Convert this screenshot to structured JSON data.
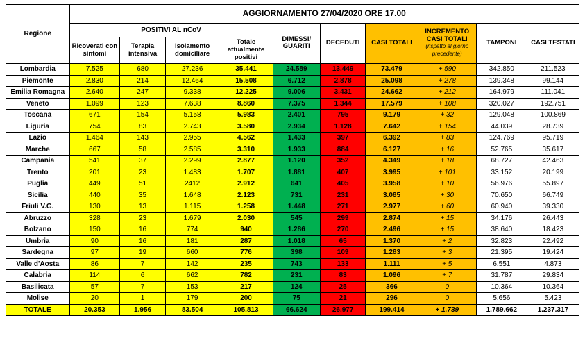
{
  "title": "AGGIORNAMENTO 27/04/2020 ORE 17.00",
  "headers": {
    "regione": "Regione",
    "positivi_group": "POSITIVI AL nCoV",
    "ricoverati": "Ricoverati con sintomi",
    "terapia": "Terapia intensiva",
    "isolamento": "Isolamento domiciliare",
    "tot_pos": "Totale attualmente positivi",
    "dimessi": "DIMESSI/ GUARITI",
    "deceduti": "DECEDUTI",
    "casi": "CASI TOTALI",
    "incremento": "INCREMENTO CASI  TOTALI",
    "incremento_sub": "(rispetto al giorno precedente)",
    "tamponi": "TAMPONI",
    "testati": "CASI TESTATI"
  },
  "rows": [
    {
      "reg": "Lombardia",
      "ric": "7.525",
      "ter": "680",
      "iso": "27.236",
      "tot": "35.441",
      "dim": "24.589",
      "dec": "13.449",
      "cas": "73.479",
      "inc": "+ 590",
      "tam": "342.850",
      "tes": "211.523"
    },
    {
      "reg": "Piemonte",
      "ric": "2.830",
      "ter": "214",
      "iso": "12.464",
      "tot": "15.508",
      "dim": "6.712",
      "dec": "2.878",
      "cas": "25.098",
      "inc": "+ 278",
      "tam": "139.348",
      "tes": "99.144"
    },
    {
      "reg": "Emilia Romagna",
      "ric": "2.640",
      "ter": "247",
      "iso": "9.338",
      "tot": "12.225",
      "dim": "9.006",
      "dec": "3.431",
      "cas": "24.662",
      "inc": "+ 212",
      "tam": "164.979",
      "tes": "111.041"
    },
    {
      "reg": "Veneto",
      "ric": "1.099",
      "ter": "123",
      "iso": "7.638",
      "tot": "8.860",
      "dim": "7.375",
      "dec": "1.344",
      "cas": "17.579",
      "inc": "+ 108",
      "tam": "320.027",
      "tes": "192.751"
    },
    {
      "reg": "Toscana",
      "ric": "671",
      "ter": "154",
      "iso": "5.158",
      "tot": "5.983",
      "dim": "2.401",
      "dec": "795",
      "cas": "9.179",
      "inc": "+ 32",
      "tam": "129.048",
      "tes": "100.869"
    },
    {
      "reg": "Liguria",
      "ric": "754",
      "ter": "83",
      "iso": "2.743",
      "tot": "3.580",
      "dim": "2.934",
      "dec": "1.128",
      "cas": "7.642",
      "inc": "+ 154",
      "tam": "44.039",
      "tes": "28.739"
    },
    {
      "reg": "Lazio",
      "ric": "1.464",
      "ter": "143",
      "iso": "2.955",
      "tot": "4.562",
      "dim": "1.433",
      "dec": "397",
      "cas": "6.392",
      "inc": "+ 83",
      "tam": "124.769",
      "tes": "95.719"
    },
    {
      "reg": "Marche",
      "ric": "667",
      "ter": "58",
      "iso": "2.585",
      "tot": "3.310",
      "dim": "1.933",
      "dec": "884",
      "cas": "6.127",
      "inc": "+ 16",
      "tam": "52.765",
      "tes": "35.617"
    },
    {
      "reg": "Campania",
      "ric": "541",
      "ter": "37",
      "iso": "2.299",
      "tot": "2.877",
      "dim": "1.120",
      "dec": "352",
      "cas": "4.349",
      "inc": "+ 18",
      "tam": "68.727",
      "tes": "42.463"
    },
    {
      "reg": "Trento",
      "ric": "201",
      "ter": "23",
      "iso": "1.483",
      "tot": "1.707",
      "dim": "1.881",
      "dec": "407",
      "cas": "3.995",
      "inc": "+ 101",
      "tam": "33.152",
      "tes": "20.199"
    },
    {
      "reg": "Puglia",
      "ric": "449",
      "ter": "51",
      "iso": "2412",
      "tot": "2.912",
      "dim": "641",
      "dec": "405",
      "cas": "3.958",
      "inc": "+ 10",
      "tam": "56.976",
      "tes": "55.897"
    },
    {
      "reg": "Sicilia",
      "ric": "440",
      "ter": "35",
      "iso": "1.648",
      "tot": "2.123",
      "dim": "731",
      "dec": "231",
      "cas": "3.085",
      "inc": "+ 30",
      "tam": "70.650",
      "tes": "66.749"
    },
    {
      "reg": "Friuli V.G.",
      "ric": "130",
      "ter": "13",
      "iso": "1.115",
      "tot": "1.258",
      "dim": "1.448",
      "dec": "271",
      "cas": "2.977",
      "inc": "+ 60",
      "tam": "60.940",
      "tes": "39.330"
    },
    {
      "reg": "Abruzzo",
      "ric": "328",
      "ter": "23",
      "iso": "1.679",
      "tot": "2.030",
      "dim": "545",
      "dec": "299",
      "cas": "2.874",
      "inc": "+ 15",
      "tam": "34.176",
      "tes": "26.443"
    },
    {
      "reg": "Bolzano",
      "ric": "150",
      "ter": "16",
      "iso": "774",
      "tot": "940",
      "dim": "1.286",
      "dec": "270",
      "cas": "2.496",
      "inc": "+ 15",
      "tam": "38.640",
      "tes": "18.423"
    },
    {
      "reg": "Umbria",
      "ric": "90",
      "ter": "16",
      "iso": "181",
      "tot": "287",
      "dim": "1.018",
      "dec": "65",
      "cas": "1.370",
      "inc": "+ 2",
      "tam": "32.823",
      "tes": "22.492"
    },
    {
      "reg": "Sardegna",
      "ric": "97",
      "ter": "19",
      "iso": "660",
      "tot": "776",
      "dim": "398",
      "dec": "109",
      "cas": "1.283",
      "inc": "+ 3",
      "tam": "21.395",
      "tes": "19.424"
    },
    {
      "reg": "Valle d'Aosta",
      "ric": "86",
      "ter": "7",
      "iso": "142",
      "tot": "235",
      "dim": "743",
      "dec": "133",
      "cas": "1.111",
      "inc": "+ 5",
      "tam": "6.551",
      "tes": "4.873"
    },
    {
      "reg": "Calabria",
      "ric": "114",
      "ter": "6",
      "iso": "662",
      "tot": "782",
      "dim": "231",
      "dec": "83",
      "cas": "1.096",
      "inc": "+ 7",
      "tam": "31.787",
      "tes": "29.834"
    },
    {
      "reg": "Basilicata",
      "ric": "57",
      "ter": "7",
      "iso": "153",
      "tot": "217",
      "dim": "124",
      "dec": "25",
      "cas": "366",
      "inc": "0",
      "tam": "10.364",
      "tes": "10.364"
    },
    {
      "reg": "Molise",
      "ric": "20",
      "ter": "1",
      "iso": "179",
      "tot": "200",
      "dim": "75",
      "dec": "21",
      "cas": "296",
      "inc": "0",
      "tam": "5.656",
      "tes": "5.423"
    }
  ],
  "total": {
    "reg": "TOTALE",
    "ric": "20.353",
    "ter": "1.956",
    "iso": "83.504",
    "tot": "105.813",
    "dim": "66.624",
    "dec": "26.977",
    "cas": "199.414",
    "inc": "+ 1.739",
    "tam": "1.789.662",
    "tes": "1.237.317"
  },
  "style": {
    "bg_yellow": "#ffff00",
    "bg_green": "#00b050",
    "bg_red": "#ff0000",
    "bg_orange": "#ffc000",
    "bg_white": "#ffffff",
    "border": "#000000",
    "font_size_body": 10,
    "font_size_header": 12
  }
}
